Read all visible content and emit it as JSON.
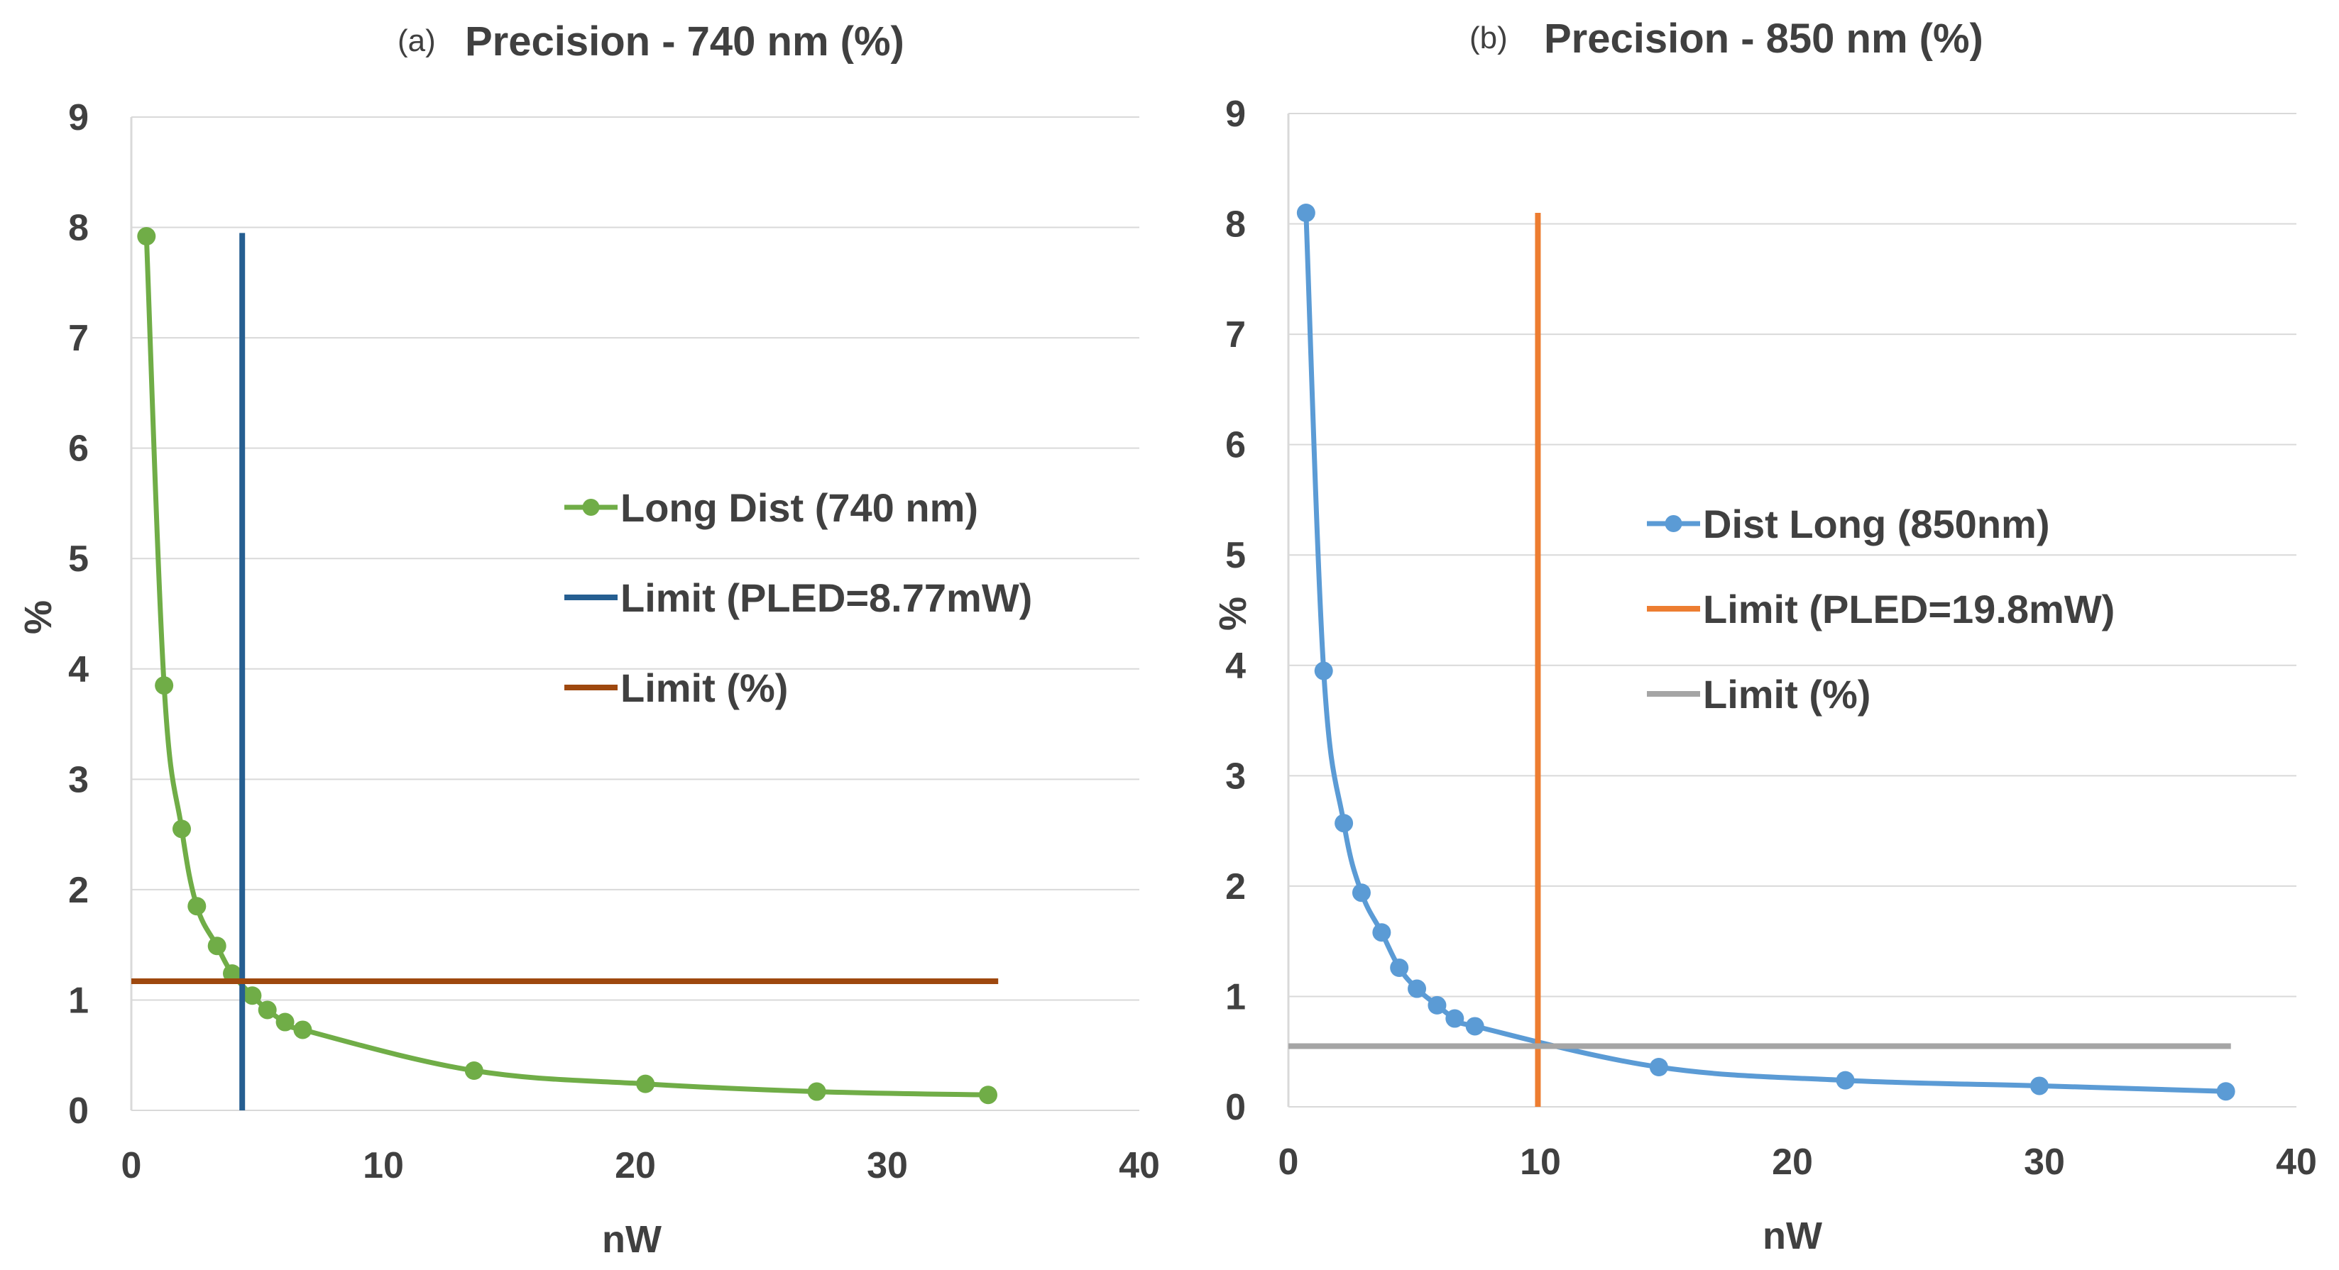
{
  "chart_data": [
    {
      "type": "line",
      "panel_tag": "(a)",
      "title": "Precision - 740 nm (%)",
      "xlabel": "nW",
      "ylabel": "%",
      "xlim": [
        0,
        40
      ],
      "ylim": [
        0,
        9
      ],
      "x_ticks": [
        "0",
        "10",
        "20",
        "30",
        "40"
      ],
      "y_ticks": [
        "0",
        "1",
        "2",
        "3",
        "4",
        "5",
        "6",
        "7",
        "8",
        "9"
      ],
      "grid": "horizontal",
      "legend_placement": "center-right",
      "series": [
        {
          "name": "Long Dist (740 nm)",
          "kind": "curve",
          "color": "#70ad47",
          "markers": true,
          "x": [
            0.6,
            1.3,
            2.0,
            2.6,
            3.4,
            4.0,
            4.8,
            5.4,
            6.1,
            6.8,
            13.6,
            20.4,
            27.2,
            34.0
          ],
          "y": [
            7.92,
            3.85,
            2.55,
            1.85,
            1.49,
            1.24,
            1.04,
            0.91,
            0.8,
            0.73,
            0.36,
            0.24,
            0.17,
            0.14
          ]
        },
        {
          "name": "Limit (PLED=8.77mW)",
          "kind": "vertical",
          "color": "#255e91",
          "x": [
            4.4,
            4.4
          ],
          "y": [
            0,
            7.95
          ]
        },
        {
          "name": "Limit (%)",
          "kind": "horizontal",
          "color": "#9e480e",
          "x": [
            0,
            34.4
          ],
          "y": [
            1.17,
            1.17
          ]
        }
      ]
    },
    {
      "type": "line",
      "panel_tag": "(b)",
      "title": "Precision - 850 nm (%)",
      "xlabel": "nW",
      "ylabel": "%",
      "xlim": [
        0,
        40
      ],
      "ylim": [
        0,
        9
      ],
      "x_ticks": [
        "0",
        "10",
        "20",
        "30",
        "40"
      ],
      "y_ticks": [
        "0",
        "1",
        "2",
        "3",
        "4",
        "5",
        "6",
        "7",
        "8",
        "9"
      ],
      "grid": "horizontal",
      "legend_placement": "center-right",
      "series": [
        {
          "name": "Dist Long (850nm)",
          "kind": "curve",
          "color": "#5b9bd5",
          "markers": true,
          "x": [
            0.7,
            1.4,
            2.2,
            2.9,
            3.7,
            4.4,
            5.1,
            5.9,
            6.6,
            7.4,
            14.7,
            22.1,
            29.8,
            37.2
          ],
          "y": [
            8.1,
            3.95,
            2.57,
            1.94,
            1.58,
            1.26,
            1.07,
            0.92,
            0.8,
            0.73,
            0.36,
            0.24,
            0.19,
            0.14
          ]
        },
        {
          "name": "Limit (PLED=19.8mW)",
          "kind": "vertical",
          "color": "#ed7d31",
          "x": [
            9.9,
            9.9
          ],
          "y": [
            0,
            8.1
          ]
        },
        {
          "name": "Limit (%)",
          "kind": "horizontal",
          "color": "#a5a5a5",
          "x": [
            0,
            37.4
          ],
          "y": [
            0.55,
            0.55
          ]
        }
      ]
    }
  ]
}
